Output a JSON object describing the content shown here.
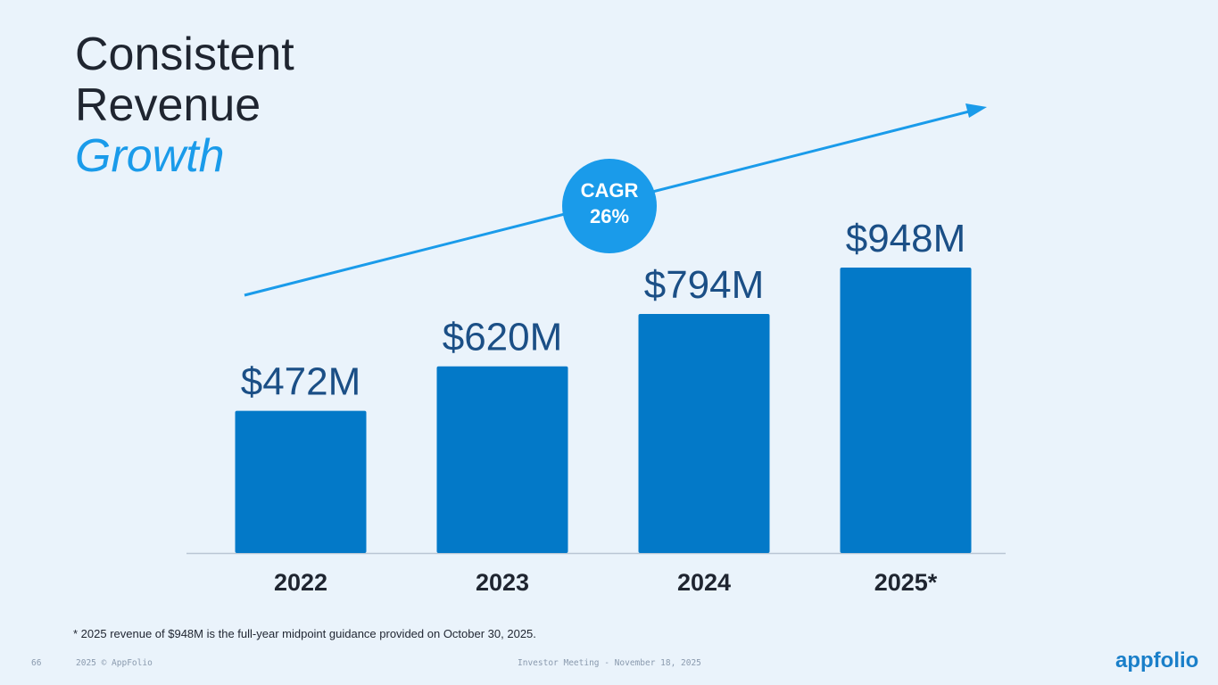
{
  "title_lines": [
    "Consistent",
    "Revenue",
    "Growth"
  ],
  "annotation": [
    "CAGR",
    "26%"
  ],
  "footnote": "* 2025 revenue of $948M is the full-year midpoint guidance provided on October 30, 2025.",
  "footer": {
    "page": "66",
    "copyright": "2025 © AppFolio",
    "event": "Investor Meeting - November 18, 2025",
    "logo": "appfolio"
  },
  "chart_data": {
    "type": "bar",
    "categories": [
      "2022",
      "2023",
      "2024",
      "2025*"
    ],
    "values": [
      472,
      620,
      794,
      948
    ],
    "value_labels": [
      "$472M",
      "$620M",
      "$794M",
      "$948M"
    ],
    "color": "#0379c8"
  }
}
